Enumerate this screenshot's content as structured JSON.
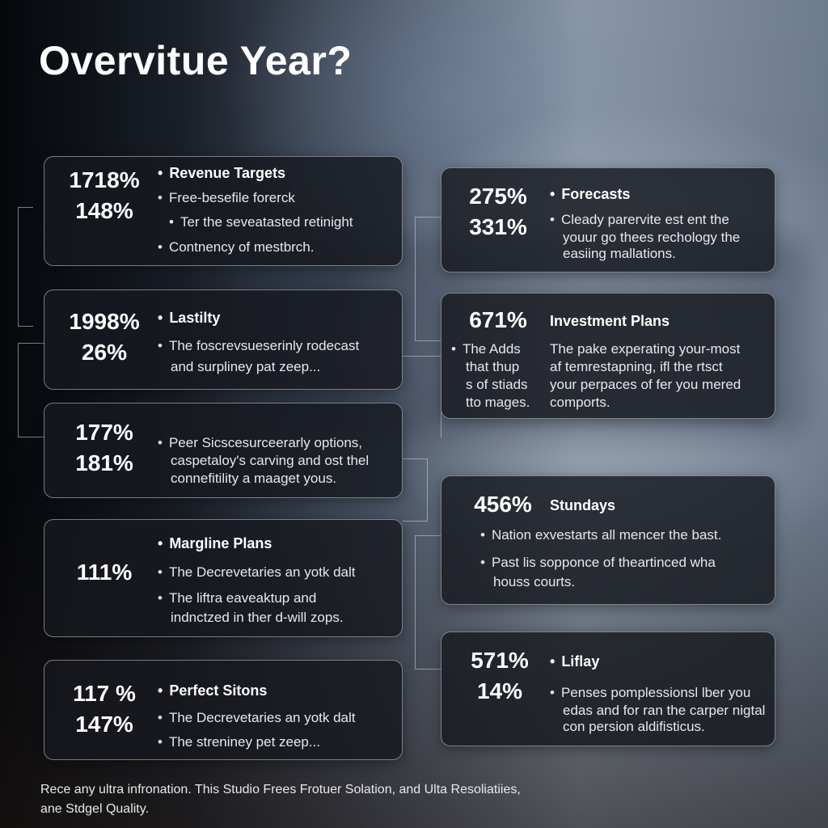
{
  "title": "Overvitue Year?",
  "bullet": "•",
  "cards": {
    "revenue": {
      "pct1": "1718%",
      "pct2": "148%",
      "heading": "Revenue Targets",
      "lines": [
        "Free-besefile forerck",
        "Ter the sevеatasted retinight",
        "Contnency of mestbrch."
      ]
    },
    "lastilty": {
      "pct1": "1998%",
      "pct2": "26%",
      "heading": "Lastilty",
      "lines": [
        "The foscrevsueserinly rodecast",
        "and surpliney pat zeep..."
      ]
    },
    "peer": {
      "pct1": "177%",
      "pct2": "181%",
      "lines": [
        "Peer Sicscesurceerarly options,",
        "caspetaloy's carving and ost thel",
        "connefitility a maaget yous."
      ]
    },
    "margline": {
      "pct1": "111%",
      "heading": "Margline Plans",
      "lines": [
        "The Decrevetaries an yotk dalt",
        "The liftra eaveaktup and",
        "indnctzed in ther d-will zops."
      ]
    },
    "perfect": {
      "pct1": "117 %",
      "pct2": "147%",
      "heading": "Perfect Sitons",
      "lines": [
        "The Decrevetaries an yotk dalt",
        "The strеniney pet zeep..."
      ]
    },
    "forecasts": {
      "pct1": "275%",
      "pct2": "331%",
      "heading": "Forecasts",
      "lines": [
        "Cleady parervite est ent the",
        "youur go thees rechology the",
        "easiing mallations."
      ]
    },
    "investment": {
      "pct1": "671%",
      "heading": "Investment Plans",
      "left_lines": [
        "The Adds",
        "that thup",
        "s of stiads",
        "tto mages."
      ],
      "right_lines": [
        "The pake experating your-most",
        "af temrestapning, ifl the rtsct",
        "your perpaces of fer you mered",
        "comports."
      ]
    },
    "stundays": {
      "pct1": "456%",
      "heading": "Stundays",
      "lines": [
        "Nation exvestarts all mencer the bast.",
        "Past lis sopponce of theartinced wha",
        "houss courts."
      ]
    },
    "liflay": {
      "pct1": "571%",
      "pct2": "14%",
      "heading": "Liflay",
      "lines": [
        "Penses pomplessionsl lber you",
        "edas and for ran the carper nigtal",
        "con persion aldifisticus."
      ]
    }
  },
  "footer": {
    "line1": "Rece any ultra infronation. This Studio Frees Frotuer Solation, and Ulta Resoliatiies,",
    "line2": "ane Stdgel Quality."
  }
}
